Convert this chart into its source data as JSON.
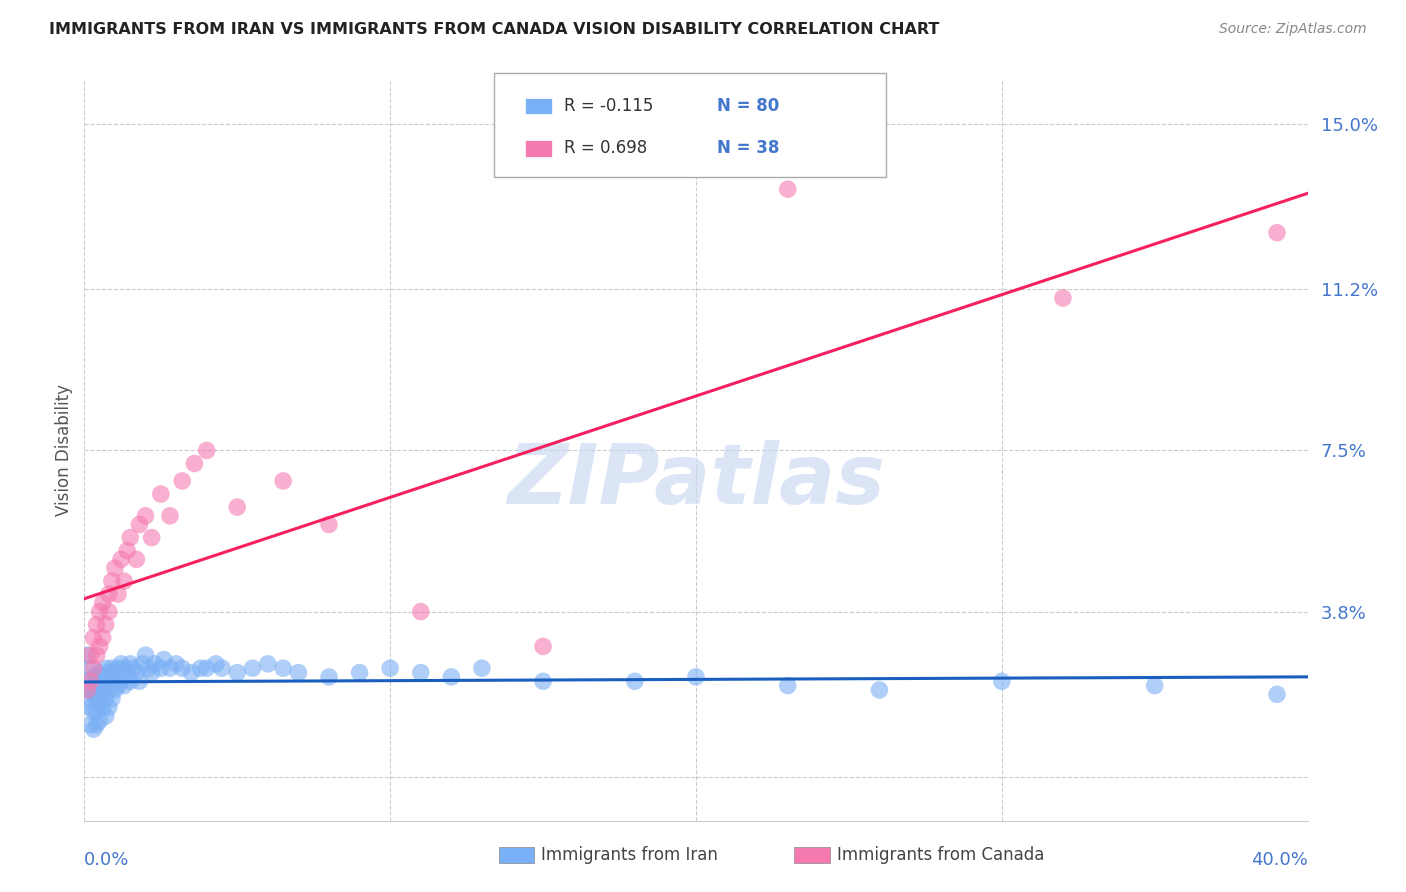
{
  "title": "IMMIGRANTS FROM IRAN VS IMMIGRANTS FROM CANADA VISION DISABILITY CORRELATION CHART",
  "source": "Source: ZipAtlas.com",
  "ylabel": "Vision Disability",
  "yticks": [
    0.0,
    0.038,
    0.075,
    0.112,
    0.15
  ],
  "ytick_labels": [
    "",
    "3.8%",
    "7.5%",
    "11.2%",
    "15.0%"
  ],
  "xlim": [
    0.0,
    0.4
  ],
  "ylim": [
    -0.01,
    0.16
  ],
  "legend_iran_r": "R = -0.115",
  "legend_iran_n": "N = 80",
  "legend_canada_r": "R = 0.698",
  "legend_canada_n": "N = 38",
  "iran_color": "#7ab0f5",
  "canada_color": "#f57ab0",
  "iran_line_color": "#1a5fbf",
  "canada_line_color": "#f52060",
  "watermark": "ZIPatlas",
  "iran_x": [
    0.001,
    0.001,
    0.001,
    0.002,
    0.002,
    0.002,
    0.002,
    0.003,
    0.003,
    0.003,
    0.003,
    0.004,
    0.004,
    0.004,
    0.004,
    0.005,
    0.005,
    0.005,
    0.005,
    0.006,
    0.006,
    0.006,
    0.007,
    0.007,
    0.007,
    0.007,
    0.008,
    0.008,
    0.008,
    0.009,
    0.009,
    0.009,
    0.01,
    0.01,
    0.011,
    0.011,
    0.012,
    0.012,
    0.013,
    0.013,
    0.014,
    0.015,
    0.015,
    0.016,
    0.017,
    0.018,
    0.019,
    0.02,
    0.021,
    0.022,
    0.023,
    0.025,
    0.026,
    0.028,
    0.03,
    0.032,
    0.035,
    0.038,
    0.04,
    0.043,
    0.045,
    0.05,
    0.055,
    0.06,
    0.065,
    0.07,
    0.08,
    0.09,
    0.1,
    0.11,
    0.12,
    0.13,
    0.15,
    0.18,
    0.2,
    0.23,
    0.26,
    0.3,
    0.35,
    0.39
  ],
  "iran_y": [
    0.028,
    0.022,
    0.018,
    0.025,
    0.02,
    0.016,
    0.012,
    0.023,
    0.019,
    0.015,
    0.011,
    0.022,
    0.018,
    0.015,
    0.012,
    0.024,
    0.02,
    0.017,
    0.013,
    0.023,
    0.02,
    0.016,
    0.025,
    0.021,
    0.018,
    0.014,
    0.024,
    0.02,
    0.016,
    0.025,
    0.022,
    0.018,
    0.024,
    0.02,
    0.025,
    0.021,
    0.026,
    0.022,
    0.025,
    0.021,
    0.024,
    0.026,
    0.022,
    0.025,
    0.024,
    0.022,
    0.026,
    0.028,
    0.025,
    0.024,
    0.026,
    0.025,
    0.027,
    0.025,
    0.026,
    0.025,
    0.024,
    0.025,
    0.025,
    0.026,
    0.025,
    0.024,
    0.025,
    0.026,
    0.025,
    0.024,
    0.023,
    0.024,
    0.025,
    0.024,
    0.023,
    0.025,
    0.022,
    0.022,
    0.023,
    0.021,
    0.02,
    0.022,
    0.021,
    0.019
  ],
  "canada_x": [
    0.001,
    0.002,
    0.002,
    0.003,
    0.003,
    0.004,
    0.004,
    0.005,
    0.005,
    0.006,
    0.006,
    0.007,
    0.008,
    0.008,
    0.009,
    0.01,
    0.011,
    0.012,
    0.013,
    0.014,
    0.015,
    0.017,
    0.018,
    0.02,
    0.022,
    0.025,
    0.028,
    0.032,
    0.036,
    0.04,
    0.05,
    0.065,
    0.08,
    0.11,
    0.15,
    0.23,
    0.32,
    0.39
  ],
  "canada_y": [
    0.02,
    0.022,
    0.028,
    0.025,
    0.032,
    0.028,
    0.035,
    0.03,
    0.038,
    0.032,
    0.04,
    0.035,
    0.042,
    0.038,
    0.045,
    0.048,
    0.042,
    0.05,
    0.045,
    0.052,
    0.055,
    0.05,
    0.058,
    0.06,
    0.055,
    0.065,
    0.06,
    0.068,
    0.072,
    0.075,
    0.062,
    0.068,
    0.058,
    0.038,
    0.03,
    0.135,
    0.11,
    0.125
  ]
}
